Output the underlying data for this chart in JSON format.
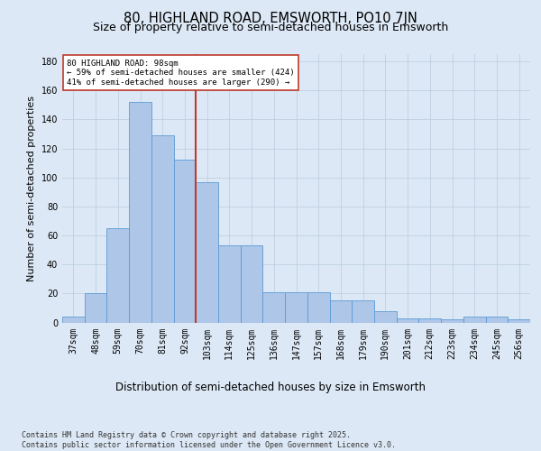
{
  "title": "80, HIGHLAND ROAD, EMSWORTH, PO10 7JN",
  "subtitle": "Size of property relative to semi-detached houses in Emsworth",
  "xlabel": "Distribution of semi-detached houses by size in Emsworth",
  "ylabel": "Number of semi-detached properties",
  "categories": [
    "37sqm",
    "48sqm",
    "59sqm",
    "70sqm",
    "81sqm",
    "92sqm",
    "103sqm",
    "114sqm",
    "125sqm",
    "136sqm",
    "147sqm",
    "157sqm",
    "168sqm",
    "179sqm",
    "190sqm",
    "201sqm",
    "212sqm",
    "223sqm",
    "234sqm",
    "245sqm",
    "256sqm"
  ],
  "values": [
    4,
    20,
    65,
    152,
    129,
    112,
    97,
    53,
    53,
    21,
    21,
    21,
    15,
    15,
    8,
    3,
    3,
    2,
    4,
    4,
    2
  ],
  "bar_color": "#aec6e8",
  "bar_edge_color": "#5b9bd5",
  "vline_color": "#c0392b",
  "annotation_text": "80 HIGHLAND ROAD: 98sqm\n← 59% of semi-detached houses are smaller (424)\n41% of semi-detached houses are larger (290) →",
  "annotation_box_color": "#ffffff",
  "annotation_box_edge": "#c0392b",
  "ylim": [
    0,
    185
  ],
  "yticks": [
    0,
    20,
    40,
    60,
    80,
    100,
    120,
    140,
    160,
    180
  ],
  "background_color": "#dce8f5",
  "footer_text": "Contains HM Land Registry data © Crown copyright and database right 2025.\nContains public sector information licensed under the Open Government Licence v3.0.",
  "title_fontsize": 10.5,
  "subtitle_fontsize": 9,
  "xlabel_fontsize": 8.5,
  "ylabel_fontsize": 8,
  "tick_fontsize": 7,
  "footer_fontsize": 6
}
